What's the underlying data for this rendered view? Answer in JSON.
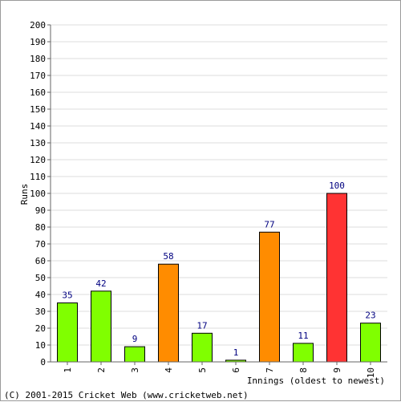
{
  "chart_data": {
    "type": "bar",
    "title": "",
    "xlabel": "Innings (oldest to newest)",
    "ylabel": "Runs",
    "categories": [
      "1",
      "2",
      "3",
      "4",
      "5",
      "6",
      "7",
      "8",
      "9",
      "10"
    ],
    "values": [
      35,
      42,
      9,
      58,
      17,
      1,
      77,
      11,
      100,
      23
    ],
    "bar_colors": [
      "#80ff00",
      "#80ff00",
      "#80ff00",
      "#ff8c00",
      "#80ff00",
      "#80ff00",
      "#ff8c00",
      "#80ff00",
      "#ff3333",
      "#80ff00"
    ],
    "data_labels": [
      "35",
      "42",
      "9",
      "58",
      "17",
      "1",
      "77",
      "11",
      "100",
      "23"
    ],
    "ylim": [
      0,
      200
    ],
    "ytick_step": 10,
    "grid": true,
    "legend": "none"
  },
  "footer": {
    "copyright": "(C) 2001-2015 Cricket Web (www.cricketweb.net)"
  },
  "colors": {
    "grid": "#dddddd",
    "axis": "#666666",
    "bar_stroke": "#000000",
    "label": "#000080"
  }
}
